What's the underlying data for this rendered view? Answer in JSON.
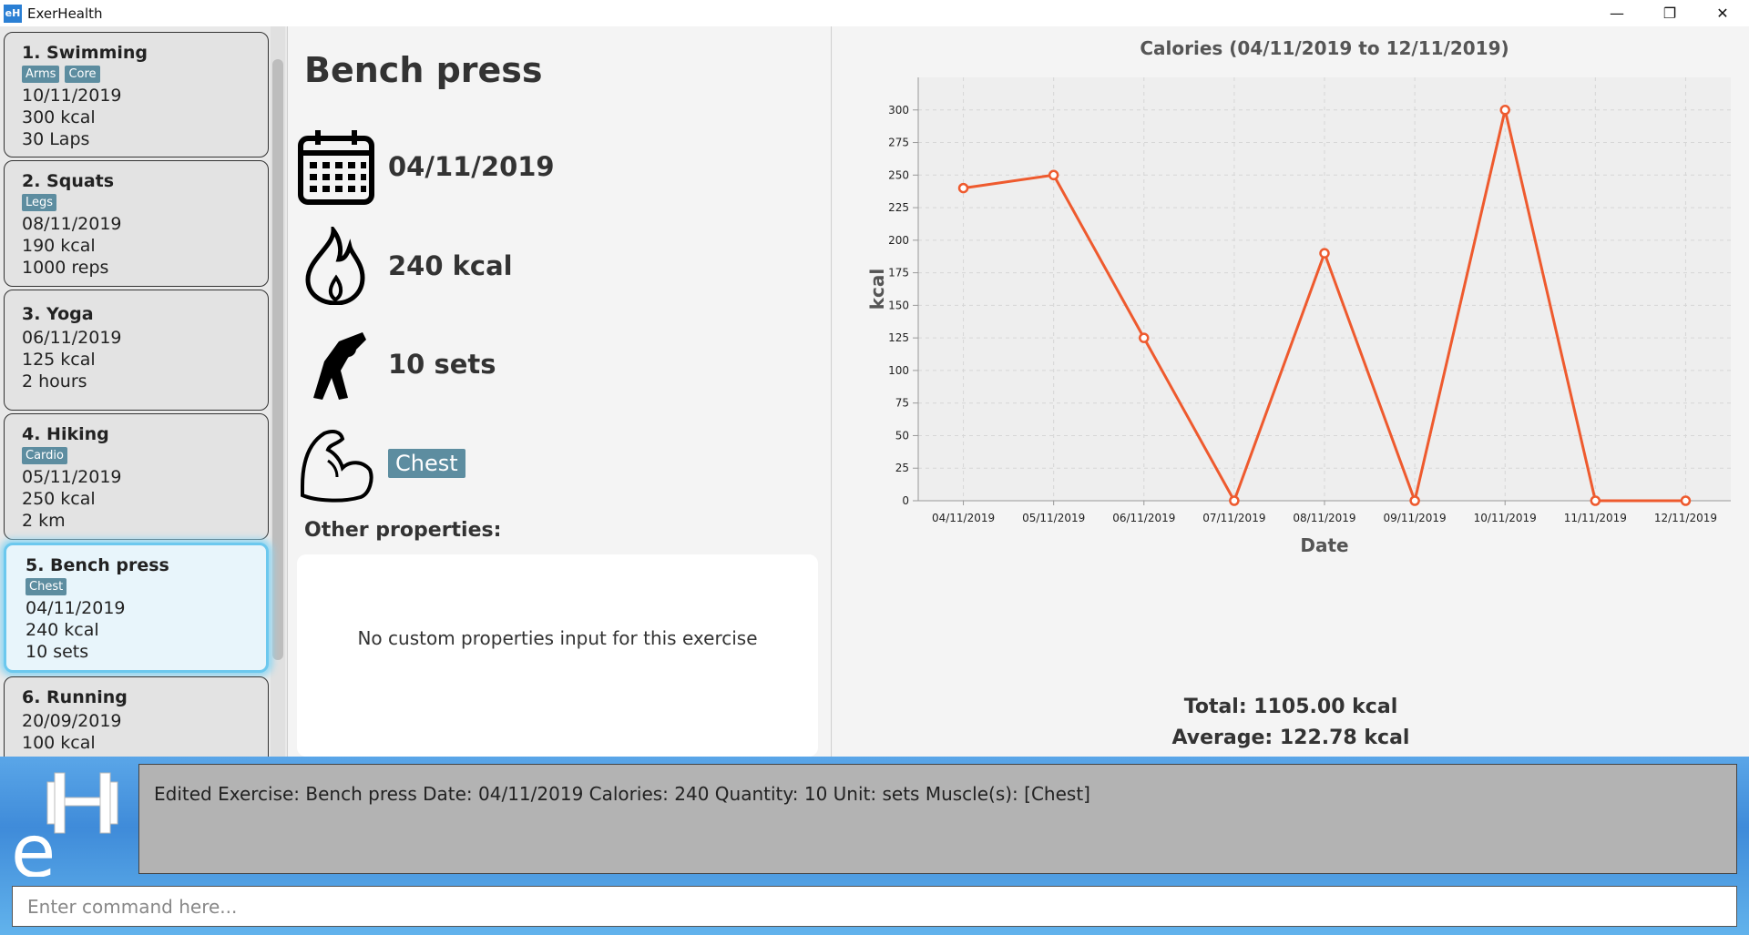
{
  "window": {
    "title": "ExerHealth",
    "icon_label": "eH"
  },
  "window_controls": {
    "minimize": "—",
    "restore": "❐",
    "close": "✕"
  },
  "exercises": [
    {
      "title": "1.  Swimming",
      "tags": [
        "Arms",
        "Core"
      ],
      "date": "10/11/2019",
      "calories": "300 kcal",
      "quantity": "30 Laps"
    },
    {
      "title": "2.  Squats",
      "tags": [
        "Legs"
      ],
      "date": "08/11/2019",
      "calories": "190 kcal",
      "quantity": "1000 reps"
    },
    {
      "title": "3.  Yoga",
      "tags": [],
      "date": "06/11/2019",
      "calories": "125 kcal",
      "quantity": "2 hours"
    },
    {
      "title": "4.  Hiking",
      "tags": [
        "Cardio"
      ],
      "date": "05/11/2019",
      "calories": "250 kcal",
      "quantity": "2 km"
    },
    {
      "title": "5.  Bench press",
      "tags": [
        "Chest"
      ],
      "date": "04/11/2019",
      "calories": "240 kcal",
      "quantity": "10 sets"
    },
    {
      "title": "6.  Running",
      "tags": [],
      "date": "20/09/2019",
      "calories": "100 kcal",
      "quantity": ""
    }
  ],
  "detail": {
    "name": "Bench press",
    "date": "04/11/2019",
    "calories": "240 kcal",
    "quantity": "10 sets",
    "muscle": "Chest",
    "other_label": "Other properties:",
    "other_empty": "No custom properties input for this exercise"
  },
  "chart_data": {
    "type": "line",
    "title": "Calories (04/11/2019 to 12/11/2019)",
    "xlabel": "Date",
    "ylabel": "kcal",
    "categories": [
      "04/11/2019",
      "05/11/2019",
      "06/11/2019",
      "07/11/2019",
      "08/11/2019",
      "09/11/2019",
      "10/11/2019",
      "11/11/2019",
      "12/11/2019"
    ],
    "values": [
      240,
      250,
      125,
      0,
      190,
      0,
      300,
      0,
      0
    ],
    "ylim": [
      0,
      325
    ],
    "yticks": [
      0,
      25,
      50,
      75,
      100,
      125,
      150,
      175,
      200,
      225,
      250,
      275,
      300
    ],
    "grid": true,
    "color": "#ee5a2e"
  },
  "stats": {
    "total": "Total: 1105.00 kcal",
    "average": "Average: 122.78 kcal"
  },
  "result": {
    "text": "Edited Exercise: Bench press Date: 04/11/2019 Calories: 240 Quantity: 10 Unit: sets Muscle(s): [Chest]"
  },
  "command": {
    "placeholder": "Enter command here..."
  },
  "colors": {
    "tag": "#5d8da0",
    "selected_border": "#6cc8ee",
    "accent": "#3f8bd9"
  }
}
